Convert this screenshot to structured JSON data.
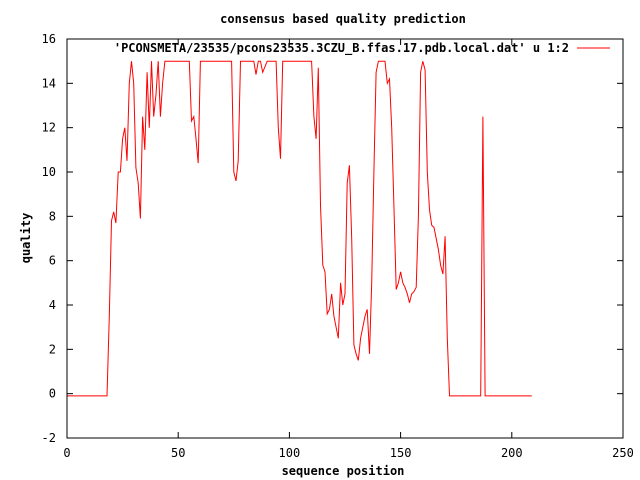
{
  "chart_data": {
    "type": "line",
    "title": "consensus based quality prediction",
    "xlabel": "sequence position",
    "ylabel": "quality",
    "xlim": [
      0,
      250
    ],
    "ylim": [
      -2,
      16
    ],
    "xticks": [
      0,
      50,
      100,
      150,
      200,
      250
    ],
    "yticks": [
      -2,
      0,
      2,
      4,
      6,
      8,
      10,
      12,
      14,
      16
    ],
    "legend_position": "top-right",
    "series": [
      {
        "name": "'PCONSMETA/23535/pcons23535.3CZU_B.ffas.17.pdb.local.dat' u 1:2",
        "color": "#ff0000",
        "x": [
          0,
          18,
          19,
          20,
          21,
          22,
          23,
          24,
          25,
          26,
          27,
          28,
          29,
          30,
          31,
          32,
          33,
          34,
          35,
          36,
          37,
          38,
          39,
          40,
          41,
          42,
          43,
          44,
          45,
          46,
          47,
          48,
          49,
          50,
          52,
          55,
          56,
          57,
          58,
          59,
          60,
          62,
          65,
          70,
          74,
          75,
          76,
          77,
          78,
          80,
          82,
          84,
          85,
          86,
          87,
          88,
          90,
          94,
          95,
          96,
          97,
          98,
          100,
          110,
          111,
          112,
          113,
          114,
          115,
          116,
          117,
          118,
          119,
          120,
          121,
          122,
          123,
          124,
          125,
          126,
          127,
          128,
          129,
          130,
          131,
          132,
          133,
          134,
          135,
          136,
          137,
          138,
          139,
          140,
          141,
          142,
          143,
          144,
          145,
          146,
          147,
          148,
          149,
          150,
          151,
          152,
          153,
          154,
          155,
          156,
          157,
          158,
          159,
          160,
          161,
          162,
          163,
          164,
          165,
          166,
          167,
          168,
          169,
          170,
          171,
          172,
          173,
          177,
          186,
          187,
          188,
          209
        ],
        "y": [
          -0.1,
          -0.1,
          3.5,
          7.8,
          8.2,
          7.7,
          10.0,
          10.0,
          11.5,
          12.0,
          10.5,
          14.0,
          15.0,
          14.0,
          10.2,
          9.5,
          7.9,
          12.5,
          11.0,
          14.5,
          12.0,
          15.0,
          12.5,
          13.5,
          15.0,
          12.5,
          14.0,
          15.0,
          15.0,
          15.0,
          15.0,
          15.0,
          15.0,
          15.0,
          15.0,
          15.0,
          12.3,
          12.5,
          11.5,
          10.4,
          15.0,
          15.0,
          15.0,
          15.0,
          15.0,
          10.0,
          9.6,
          10.5,
          15.0,
          15.0,
          15.0,
          15.0,
          14.4,
          15.0,
          15.0,
          14.5,
          15.0,
          15.0,
          12.0,
          10.6,
          15.0,
          15.0,
          15.0,
          15.0,
          12.5,
          11.5,
          14.7,
          8.5,
          5.8,
          5.5,
          3.6,
          3.8,
          4.5,
          3.5,
          3.0,
          2.5,
          5.0,
          4.0,
          4.5,
          9.5,
          10.3,
          7.0,
          2.2,
          1.8,
          1.5,
          2.5,
          3.0,
          3.5,
          3.8,
          1.8,
          5.0,
          10.0,
          14.5,
          15.0,
          15.0,
          15.0,
          15.0,
          14.0,
          14.2,
          12.0,
          8.5,
          4.7,
          5.0,
          5.5,
          5.0,
          4.8,
          4.5,
          4.1,
          4.5,
          4.6,
          4.8,
          8.0,
          14.5,
          15.0,
          14.6,
          10.0,
          8.3,
          7.6,
          7.5,
          7.0,
          6.5,
          5.8,
          5.4,
          7.1,
          2.5,
          -0.1,
          -0.1,
          -0.1,
          -0.1,
          12.5,
          -0.1,
          -0.1
        ]
      }
    ]
  }
}
